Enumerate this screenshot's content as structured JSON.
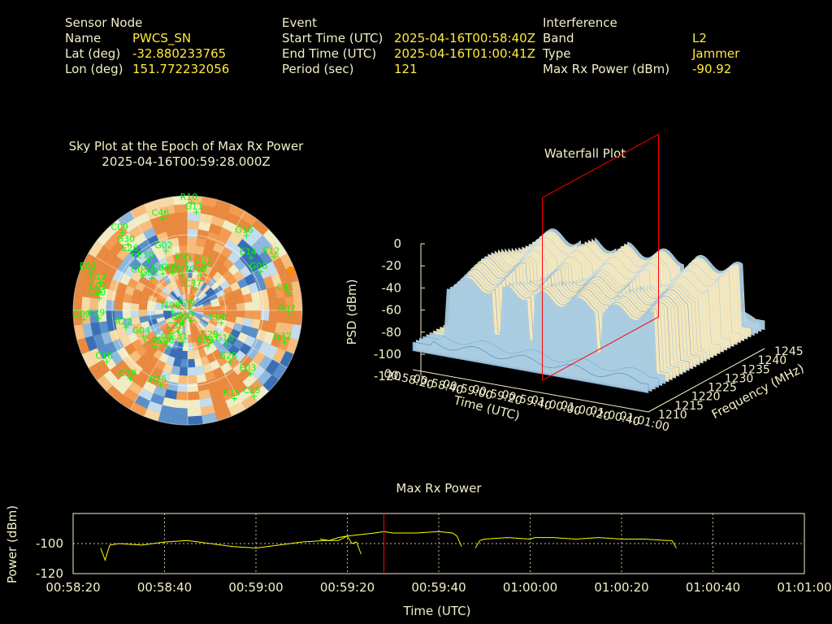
{
  "header": {
    "sensor": {
      "title": "Sensor Node",
      "name_label": "Name",
      "name": "PWCS_SN",
      "lat_label": "Lat (deg)",
      "lat": "-32.880233765",
      "lon_label": "Lon (deg)",
      "lon": "151.772232056"
    },
    "event": {
      "title": "Event",
      "start_label": "Start Time (UTC)",
      "start": "2025-04-16T00:58:40Z",
      "end_label": "End Time (UTC)",
      "end": "2025-04-16T01:00:41Z",
      "period_label": "Period (sec)",
      "period": "121"
    },
    "interference": {
      "title": "Interference",
      "band_label": "Band",
      "band": "L2",
      "type_label": "Type",
      "type": "Jammer",
      "maxrx_label": "Max Rx Power (dBm)",
      "maxrx": "-90.92"
    }
  },
  "colors": {
    "text": "#f3efc8",
    "value": "#ffeb3b",
    "satellite": "#00ff00",
    "marker": "#ff0000",
    "trace": "#ffff00"
  },
  "chart_data": [
    {
      "type": "heatmap",
      "title": "Sky Plot at the Epoch of Max Rx Power",
      "subtitle": "2025-04-16T00:59:28.000Z",
      "satellites": [
        {
          "id": "R10",
          "az": 2,
          "el": 5
        },
        {
          "id": "G11",
          "az": 5,
          "el": 12
        },
        {
          "id": "C46",
          "az": 345,
          "el": 15
        },
        {
          "id": "C09",
          "az": 320,
          "el": 10
        },
        {
          "id": "G30",
          "az": 318,
          "el": 20
        },
        {
          "id": "E26",
          "az": 316,
          "el": 28
        },
        {
          "id": "E10",
          "az": 322,
          "el": 40
        },
        {
          "id": "G02",
          "az": 340,
          "el": 40
        },
        {
          "id": "E95",
          "az": 358,
          "el": 52
        },
        {
          "id": "G16",
          "az": 38,
          "el": 15
        },
        {
          "id": "C01",
          "az": 22,
          "el": 52
        },
        {
          "id": "C08",
          "az": 20,
          "el": 60
        },
        {
          "id": "E14",
          "az": 50,
          "el": 25
        },
        {
          "id": "E12",
          "az": 58,
          "el": 10
        },
        {
          "id": "G08",
          "az": 62,
          "el": 25
        },
        {
          "id": "C37",
          "az": 20,
          "el": 72
        },
        {
          "id": "G99",
          "az": 338,
          "el": 58
        },
        {
          "id": "G04",
          "az": 326,
          "el": 55
        },
        {
          "id": "C03",
          "az": 308,
          "el": 45
        },
        {
          "id": "G07",
          "az": 352,
          "el": 62
        },
        {
          "id": "G01",
          "az": 312,
          "el": 52
        },
        {
          "id": "E02",
          "az": 292,
          "el": 8
        },
        {
          "id": "C12",
          "az": 288,
          "el": 18
        },
        {
          "id": "C02",
          "az": 282,
          "el": 20
        },
        {
          "id": "C60",
          "az": 278,
          "el": 20
        },
        {
          "id": "C29",
          "az": 265,
          "el": 20
        },
        {
          "id": "G09",
          "az": 265,
          "el": 8
        },
        {
          "id": "R22",
          "az": 255,
          "el": 40
        },
        {
          "id": "E29",
          "az": 40,
          "el": 88
        },
        {
          "id": "I198",
          "az": 268,
          "el": 78
        },
        {
          "id": "C41",
          "az": 80,
          "el": 10
        },
        {
          "id": "R07",
          "az": 92,
          "el": 10
        },
        {
          "id": "E08",
          "az": 110,
          "el": 62
        },
        {
          "id": "G32",
          "az": 108,
          "el": 10
        },
        {
          "id": "I19",
          "az": 160,
          "el": 82
        },
        {
          "id": "C29",
          "az": 140,
          "el": 60
        },
        {
          "id": "G18",
          "az": 130,
          "el": 50
        },
        {
          "id": "R06",
          "az": 150,
          "el": 58
        },
        {
          "id": "G28",
          "az": 140,
          "el": 38
        },
        {
          "id": "E03",
          "az": 135,
          "el": 20
        },
        {
          "id": "R15",
          "az": 152,
          "el": 12
        },
        {
          "id": "C25",
          "az": 142,
          "el": 5
        },
        {
          "id": "G04",
          "az": 240,
          "el": 50
        },
        {
          "id": "C38",
          "az": 205,
          "el": 72
        },
        {
          "id": "G03",
          "az": 205,
          "el": 80
        },
        {
          "id": "C45",
          "az": 222,
          "el": 52
        },
        {
          "id": "C04",
          "az": 215,
          "el": 60
        },
        {
          "id": "G06",
          "az": 210,
          "el": 58
        },
        {
          "id": "E31",
          "az": 190,
          "el": 65
        },
        {
          "id": "C16",
          "az": 238,
          "el": 15
        },
        {
          "id": "C38",
          "az": 220,
          "el": 20
        },
        {
          "id": "R25",
          "az": 200,
          "el": 28
        }
      ]
    },
    {
      "type": "area",
      "title": "Waterfall Plot",
      "xlabel": "Time (UTC)",
      "ylabel": "Frequency (MHz)",
      "zlabel": "PSD (dBm)",
      "time_ticks": [
        "00:58:20",
        "00:58:40",
        "00:59:00",
        "00:59:20",
        "00:59:40",
        "01:00:00",
        "01:00:20",
        "01:00:40",
        "01:01:00"
      ],
      "freq_ticks": [
        "1210",
        "1215",
        "1220",
        "1225",
        "1230",
        "1235",
        "1240",
        "1245"
      ],
      "psd_ticks": [
        "0",
        "-20",
        "-40",
        "-60",
        "-80",
        "-100",
        "-120"
      ],
      "zlim": [
        -120,
        0
      ],
      "marker_time": "00:59:28"
    },
    {
      "type": "line",
      "title": "Max Rx Power",
      "xlabel": "Time (UTC)",
      "ylabel": "Power (dBm)",
      "x_ticks": [
        "00:58:20",
        "00:58:40",
        "00:59:00",
        "00:59:20",
        "00:59:40",
        "01:00:00",
        "01:00:20",
        "01:00:40",
        "01:01:00"
      ],
      "y_ticks": [
        "-100",
        "-120"
      ],
      "xlim_sec": [
        0,
        160
      ],
      "ylim": [
        -120,
        -80
      ],
      "marker_sec": 68,
      "segments": [
        [
          [
            6,
            -103
          ],
          [
            7,
            -111
          ],
          [
            8,
            -101
          ],
          [
            10,
            -100
          ],
          [
            15,
            -101
          ],
          [
            20,
            -99
          ],
          [
            25,
            -98
          ],
          [
            30,
            -100
          ],
          [
            35,
            -102
          ],
          [
            40,
            -103
          ],
          [
            45,
            -101
          ],
          [
            50,
            -99
          ],
          [
            55,
            -98
          ],
          [
            58,
            -98
          ],
          [
            60,
            -95
          ],
          [
            61,
            -100
          ],
          [
            62,
            -99
          ],
          [
            63,
            -107
          ]
        ],
        [
          [
            54,
            -97
          ],
          [
            56,
            -98
          ],
          [
            58,
            -96
          ],
          [
            60,
            -95
          ],
          [
            63,
            -94
          ],
          [
            66,
            -93
          ],
          [
            68,
            -92
          ],
          [
            70,
            -93
          ],
          [
            75,
            -93
          ],
          [
            80,
            -92
          ],
          [
            83,
            -93
          ],
          [
            84,
            -95
          ],
          [
            85,
            -102
          ]
        ],
        [
          [
            88,
            -103
          ],
          [
            89,
            -98
          ],
          [
            90,
            -97
          ],
          [
            95,
            -96
          ],
          [
            100,
            -97
          ],
          [
            101,
            -96
          ],
          [
            105,
            -96
          ],
          [
            110,
            -97
          ],
          [
            115,
            -96
          ],
          [
            120,
            -97
          ],
          [
            125,
            -97
          ],
          [
            130,
            -98
          ],
          [
            131,
            -98
          ],
          [
            132,
            -103
          ]
        ]
      ]
    }
  ]
}
